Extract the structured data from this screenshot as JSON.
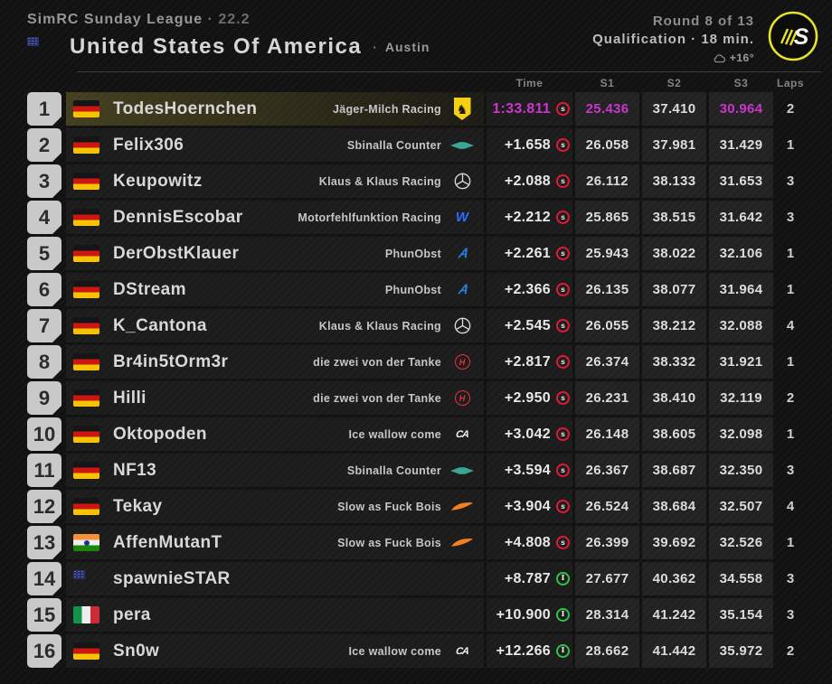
{
  "header": {
    "league": "SimRC Sunday League",
    "league_suffix": "· 22.2",
    "country": "United States Of America",
    "country_flag": "usa",
    "city_dot": "·",
    "city": "Austin",
    "round": "Round 8 of 13",
    "session": "Qualification · 18 min.",
    "temperature": "+16°",
    "logo_letter": "S"
  },
  "colors": {
    "purple": "#c837cd",
    "soft_red": "#e51837",
    "inter_green": "#2fc544",
    "accent_yellow": "#e6e32a"
  },
  "table": {
    "columns": {
      "time": "Time",
      "s1": "S1",
      "s2": "S2",
      "s3": "S3",
      "laps": "Laps"
    },
    "rows": [
      {
        "pos": "1",
        "flag": "germany",
        "driver": "TodesHoernchen",
        "team": "Jäger-Milch Racing",
        "logo": "ferrari",
        "time": "1:33.811",
        "tyre_letter": "s",
        "tyre": "soft",
        "s1": "25.436",
        "s2": "37.410",
        "s3": "30.964",
        "laps": "2",
        "highlight": true,
        "best": [
          "time",
          "s1",
          "s3"
        ]
      },
      {
        "pos": "2",
        "flag": "germany",
        "driver": "Felix306",
        "team": "Sbinalla Counter",
        "logo": "aston",
        "time": "+1.658",
        "tyre_letter": "s",
        "tyre": "soft",
        "s1": "26.058",
        "s2": "37.981",
        "s3": "31.429",
        "laps": "1",
        "highlight": false,
        "best": []
      },
      {
        "pos": "3",
        "flag": "germany",
        "driver": "Keupowitz",
        "team": "Klaus & Klaus Racing",
        "logo": "mercedes",
        "time": "+2.088",
        "tyre_letter": "s",
        "tyre": "soft",
        "s1": "26.112",
        "s2": "38.133",
        "s3": "31.653",
        "laps": "3",
        "highlight": false,
        "best": []
      },
      {
        "pos": "4",
        "flag": "germany",
        "driver": "DennisEscobar",
        "team": "Motorfehlfunktion Racing",
        "logo": "williams",
        "time": "+2.212",
        "tyre_letter": "s",
        "tyre": "soft",
        "s1": "25.865",
        "s2": "38.515",
        "s3": "31.642",
        "laps": "3",
        "highlight": false,
        "best": []
      },
      {
        "pos": "5",
        "flag": "germany",
        "driver": "DerObstKlauer",
        "team": "PhunObst",
        "logo": "alpine",
        "time": "+2.261",
        "tyre_letter": "s",
        "tyre": "soft",
        "s1": "25.943",
        "s2": "38.022",
        "s3": "32.106",
        "laps": "1",
        "highlight": false,
        "best": []
      },
      {
        "pos": "6",
        "flag": "germany",
        "driver": "DStream",
        "team": "PhunObst",
        "logo": "alpine",
        "time": "+2.366",
        "tyre_letter": "s",
        "tyre": "soft",
        "s1": "26.135",
        "s2": "38.077",
        "s3": "31.964",
        "laps": "1",
        "highlight": false,
        "best": []
      },
      {
        "pos": "7",
        "flag": "germany",
        "driver": "K_Cantona",
        "team": "Klaus & Klaus Racing",
        "logo": "mercedes",
        "time": "+2.545",
        "tyre_letter": "s",
        "tyre": "soft",
        "s1": "26.055",
        "s2": "38.212",
        "s3": "32.088",
        "laps": "4",
        "highlight": false,
        "best": []
      },
      {
        "pos": "8",
        "flag": "germany",
        "driver": "Br4in5tOrm3r",
        "team": "die zwei von der Tanke",
        "logo": "haas",
        "time": "+2.817",
        "tyre_letter": "s",
        "tyre": "soft",
        "s1": "26.374",
        "s2": "38.332",
        "s3": "31.921",
        "laps": "1",
        "highlight": false,
        "best": []
      },
      {
        "pos": "9",
        "flag": "germany",
        "driver": "Hilli",
        "team": "die zwei von der Tanke",
        "logo": "haas",
        "time": "+2.950",
        "tyre_letter": "s",
        "tyre": "soft",
        "s1": "26.231",
        "s2": "38.410",
        "s3": "32.119",
        "laps": "2",
        "highlight": false,
        "best": []
      },
      {
        "pos": "10",
        "flag": "germany",
        "driver": "Oktopoden",
        "team": "Ice wallow come",
        "logo": "alfa",
        "time": "+3.042",
        "tyre_letter": "s",
        "tyre": "soft",
        "s1": "26.148",
        "s2": "38.605",
        "s3": "32.098",
        "laps": "1",
        "highlight": false,
        "best": []
      },
      {
        "pos": "11",
        "flag": "germany",
        "driver": "NF13",
        "team": "Sbinalla Counter",
        "logo": "aston",
        "time": "+3.594",
        "tyre_letter": "s",
        "tyre": "soft",
        "s1": "26.367",
        "s2": "38.687",
        "s3": "32.350",
        "laps": "3",
        "highlight": false,
        "best": []
      },
      {
        "pos": "12",
        "flag": "germany",
        "driver": "Tekay",
        "team": "Slow as Fuck Bois",
        "logo": "mclaren",
        "time": "+3.904",
        "tyre_letter": "s",
        "tyre": "soft",
        "s1": "26.524",
        "s2": "38.684",
        "s3": "32.507",
        "laps": "4",
        "highlight": false,
        "best": []
      },
      {
        "pos": "13",
        "flag": "india",
        "driver": "AffenMutanT",
        "team": "Slow as Fuck Bois",
        "logo": "mclaren",
        "time": "+4.808",
        "tyre_letter": "s",
        "tyre": "soft",
        "s1": "26.399",
        "s2": "39.692",
        "s3": "32.526",
        "laps": "1",
        "highlight": false,
        "best": []
      },
      {
        "pos": "14",
        "flag": "usa",
        "driver": "spawnieSTAR",
        "team": "",
        "logo": "",
        "time": "+8.787",
        "tyre_letter": "I",
        "tyre": "inter",
        "s1": "27.677",
        "s2": "40.362",
        "s3": "34.558",
        "laps": "3",
        "highlight": false,
        "best": []
      },
      {
        "pos": "15",
        "flag": "italy",
        "driver": "pera",
        "team": "",
        "logo": "",
        "time": "+10.900",
        "tyre_letter": "I",
        "tyre": "inter",
        "s1": "28.314",
        "s2": "41.242",
        "s3": "35.154",
        "laps": "3",
        "highlight": false,
        "best": []
      },
      {
        "pos": "16",
        "flag": "germany",
        "driver": "Sn0w",
        "team": "Ice wallow come",
        "logo": "alfa",
        "time": "+12.266",
        "tyre_letter": "I",
        "tyre": "inter",
        "s1": "28.662",
        "s2": "41.442",
        "s3": "35.972",
        "laps": "2",
        "highlight": false,
        "best": []
      }
    ]
  }
}
